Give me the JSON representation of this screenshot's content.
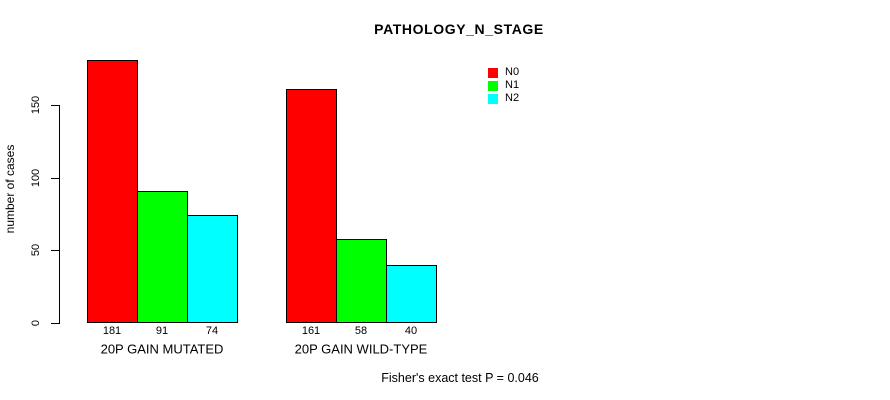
{
  "chart_data": {
    "type": "bar",
    "title": "PATHOLOGY_N_STAGE",
    "xlabel": "",
    "ylabel": "number of cases",
    "categories": [
      "20P GAIN MUTATED",
      "20P GAIN WILD-TYPE"
    ],
    "series": [
      {
        "name": "N0",
        "color": "#ff0000",
        "values": [
          181,
          161
        ]
      },
      {
        "name": "N1",
        "color": "#00ff00",
        "values": [
          91,
          58
        ]
      },
      {
        "name": "N2",
        "color": "#00ffff",
        "values": [
          74,
          40
        ]
      }
    ],
    "yticks": [
      0,
      50,
      100,
      150
    ],
    "ylim": [
      0,
      181
    ],
    "bar_value_labels": [
      [
        181,
        91,
        74
      ],
      [
        161,
        58,
        40
      ]
    ],
    "legend": {
      "entries": [
        "N0",
        "N1",
        "N2"
      ],
      "position": "top-right"
    },
    "grid": false,
    "annotation": "Fisher's exact test P = 0.046"
  }
}
